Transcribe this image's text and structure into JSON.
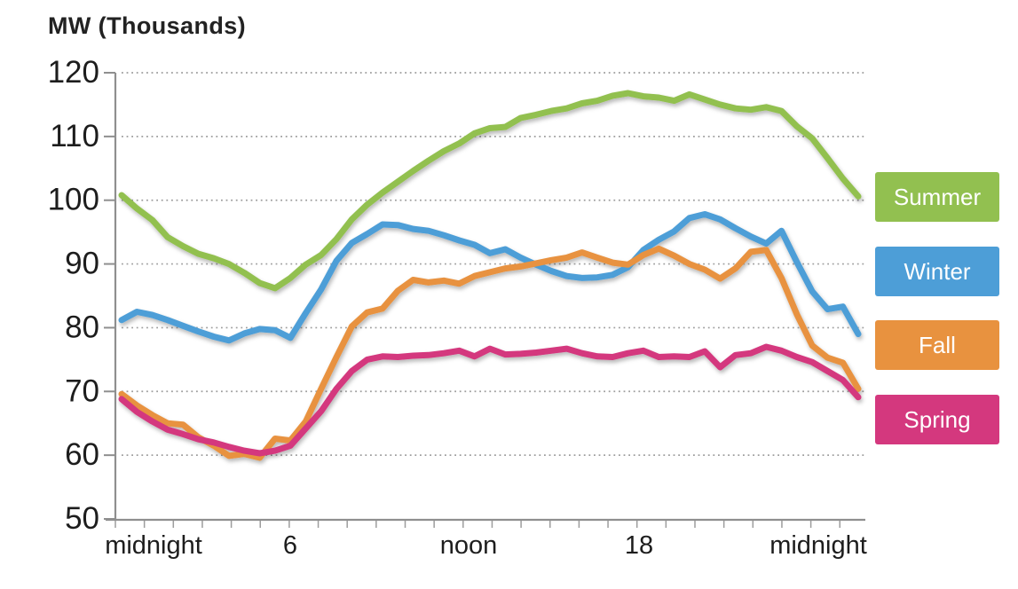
{
  "chart_data": {
    "type": "line",
    "title": "MW (Thousands)",
    "x_axis": {
      "tick_labels": [
        "midnight",
        "6",
        "noon",
        "18",
        "midnight"
      ],
      "hours_span": 24,
      "sampling_interval_hours": 0.5
    },
    "y_axis": {
      "unit_label": "MW (Thousands)",
      "ticks": [
        50,
        60,
        70,
        80,
        90,
        100,
        110,
        120
      ],
      "range": [
        50,
        120
      ],
      "gridlines": "dotted"
    },
    "legend_position": "right",
    "draw_order_bottom_to_top": [
      "Winter",
      "Fall",
      "Spring",
      "Summer"
    ],
    "series": [
      {
        "name": "Summer",
        "color": "#92c050",
        "values": [
          100.8,
          98.7,
          96.9,
          94.2,
          92.8,
          91.6,
          90.9,
          90.0,
          88.6,
          87.0,
          86.2,
          87.8,
          89.9,
          91.4,
          93.9,
          97.0,
          99.3,
          101.2,
          102.9,
          104.6,
          106.2,
          107.7,
          108.9,
          110.5,
          111.3,
          111.5,
          112.9,
          113.4,
          114.0,
          114.4,
          115.2,
          115.6,
          116.4,
          116.8,
          116.3,
          116.1,
          115.6,
          116.6,
          115.8,
          115.0,
          114.4,
          114.2,
          114.6,
          114.0,
          111.6,
          109.7,
          106.6,
          103.4,
          100.6
        ]
      },
      {
        "name": "Winter",
        "color": "#4d9ed7",
        "values": [
          81.2,
          82.5,
          82.0,
          81.2,
          80.3,
          79.4,
          78.6,
          78.0,
          79.1,
          79.8,
          79.6,
          78.4,
          82.3,
          86.0,
          90.5,
          93.3,
          94.7,
          96.2,
          96.1,
          95.5,
          95.2,
          94.5,
          93.7,
          93.0,
          91.7,
          92.3,
          91.0,
          89.9,
          88.9,
          88.1,
          87.8,
          87.9,
          88.3,
          89.5,
          92.2,
          93.8,
          95.1,
          97.2,
          97.8,
          97.0,
          95.6,
          94.3,
          93.2,
          95.2,
          90.3,
          85.7,
          82.9,
          83.3,
          79.0
        ]
      },
      {
        "name": "Fall",
        "color": "#e8923f",
        "values": [
          69.6,
          67.8,
          66.3,
          65.0,
          64.8,
          62.8,
          61.5,
          59.9,
          60.2,
          59.6,
          62.6,
          62.3,
          65.3,
          70.4,
          75.4,
          80.2,
          82.4,
          83.0,
          85.8,
          87.5,
          87.1,
          87.4,
          86.9,
          88.1,
          88.7,
          89.3,
          89.6,
          90.1,
          90.6,
          91.0,
          91.8,
          91.0,
          90.2,
          89.9,
          91.4,
          92.4,
          91.3,
          90.0,
          89.1,
          87.7,
          89.3,
          91.9,
          92.2,
          87.8,
          82.1,
          77.2,
          75.3,
          74.5,
          70.4
        ]
      },
      {
        "name": "Spring",
        "color": "#d4387e",
        "values": [
          68.8,
          66.8,
          65.3,
          64.0,
          63.3,
          62.5,
          62.0,
          61.3,
          60.7,
          60.3,
          60.7,
          61.5,
          64.2,
          66.9,
          70.4,
          73.2,
          75.0,
          75.5,
          75.4,
          75.6,
          75.7,
          76.0,
          76.4,
          75.5,
          76.7,
          75.8,
          75.9,
          76.1,
          76.4,
          76.7,
          76.0,
          75.5,
          75.4,
          76.0,
          76.4,
          75.4,
          75.5,
          75.4,
          76.3,
          73.8,
          75.7,
          76.0,
          77.0,
          76.4,
          75.4,
          74.6,
          73.2,
          71.8,
          69.1
        ]
      }
    ]
  },
  "colors": {
    "background": "#ffffff",
    "text": "#1d1d1d",
    "axis": "#8f8f8f",
    "grid": "#9d9d9d",
    "legend_text": "#ffffff"
  }
}
